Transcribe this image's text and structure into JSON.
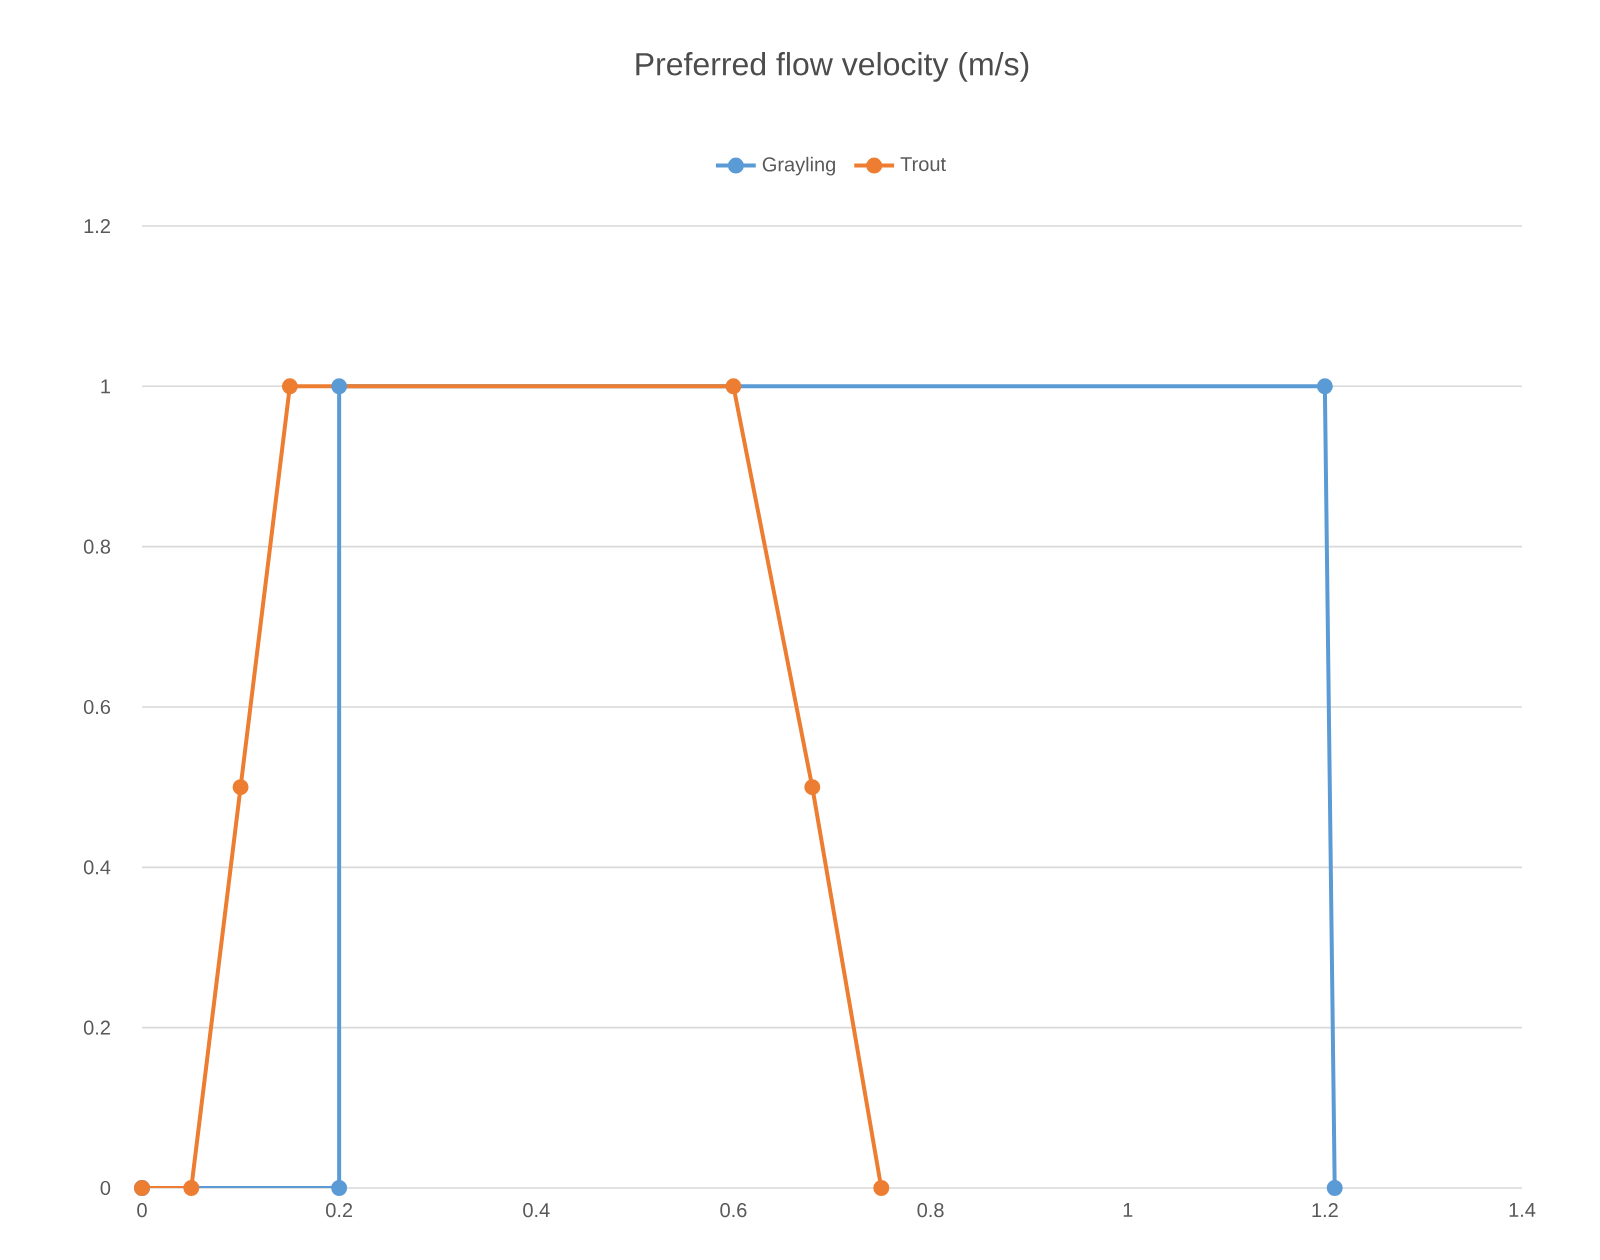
{
  "chart_data": {
    "type": "line",
    "title": "Preferred flow velocity (m/s)",
    "series": [
      {
        "name": "Grayling",
        "color": "#5b9bd5",
        "x": [
          0,
          0.2,
          0.2,
          1.2,
          1.21
        ],
        "values": [
          0,
          0,
          1,
          1,
          0
        ]
      },
      {
        "name": "Trout",
        "color": "#ed7d31",
        "x": [
          0,
          0.05,
          0.1,
          0.15,
          0.6,
          0.68,
          0.75
        ],
        "values": [
          0,
          0,
          0.5,
          1,
          1,
          0.5,
          0
        ]
      }
    ],
    "xlim": [
      0,
      1.4
    ],
    "xticks": [
      0,
      0.2,
      0.4,
      0.6,
      0.8,
      1,
      1.2,
      1.4
    ],
    "ylim": [
      0,
      1.2
    ],
    "yticks": [
      0,
      0.2,
      0.4,
      0.6,
      0.8,
      1,
      1.2
    ],
    "grid": "y",
    "legend": "top",
    "marker": "circle",
    "line_style": "solid"
  }
}
